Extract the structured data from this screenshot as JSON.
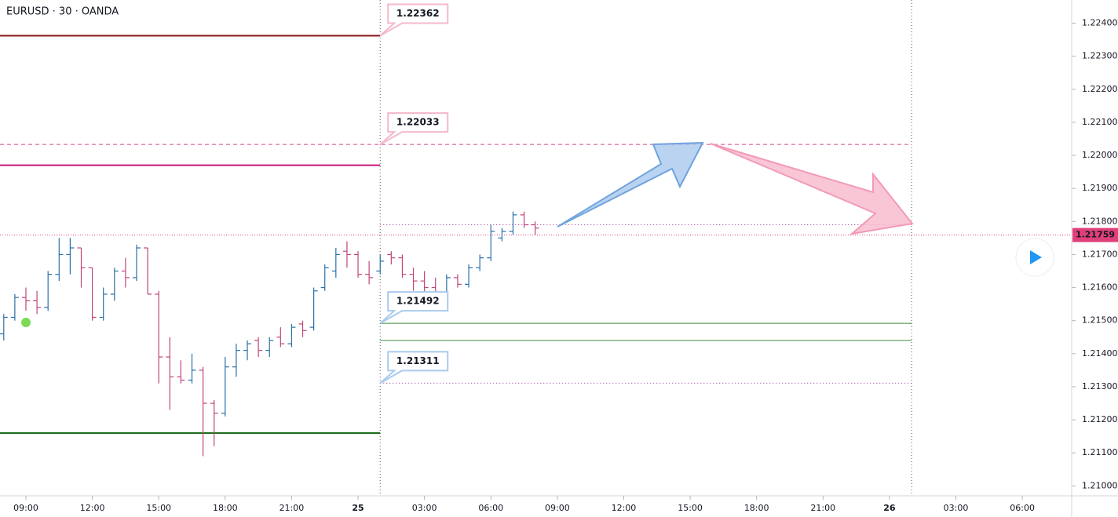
{
  "chart_data": {
    "type": "ohlc",
    "title": "EURUSD · 30 · OANDA",
    "x": [
      8,
      8.5,
      9,
      9.5,
      10,
      10.5,
      11,
      11.5,
      12,
      12.5,
      13,
      13.5,
      14,
      14.5,
      15,
      15.5,
      16,
      16.5,
      17,
      17.5,
      18,
      18.5,
      19,
      19.5,
      20,
      20.5,
      21,
      21.5,
      22,
      22.5,
      23,
      23.5,
      24,
      24.5,
      25,
      25.5,
      26,
      26.5,
      27,
      27.5,
      28,
      28.5,
      29,
      29.5,
      30,
      30.5,
      31,
      31.5,
      32
    ],
    "open": [
      1.2146,
      1.2151,
      1.2157,
      1.2156,
      1.2154,
      1.2164,
      1.217,
      1.2172,
      1.2166,
      1.2151,
      1.2158,
      1.2165,
      1.2163,
      1.2172,
      1.2158,
      1.2139,
      1.2133,
      1.2132,
      1.2135,
      1.2125,
      1.2122,
      1.2136,
      1.2141,
      1.2144,
      1.2141,
      1.2145,
      1.2143,
      1.2149,
      1.2148,
      1.216,
      1.2165,
      1.2171,
      1.217,
      1.2164,
      1.2165,
      1.217,
      1.2169,
      1.2164,
      1.2162,
      1.216,
      1.2158,
      1.2163,
      1.2161,
      1.2166,
      1.2169,
      1.2175,
      1.2177,
      1.2182,
      1.2179
    ],
    "high": [
      1.2152,
      1.2158,
      1.216,
      1.2159,
      1.2165,
      1.2175,
      1.2175,
      1.2172,
      1.2166,
      1.216,
      1.2166,
      1.2169,
      1.2173,
      1.2172,
      1.2159,
      1.2145,
      1.2138,
      1.214,
      1.2136,
      1.2126,
      1.2139,
      1.2143,
      1.2144,
      1.2145,
      1.2145,
      1.2148,
      1.2149,
      1.215,
      1.216,
      1.2167,
      1.2172,
      1.2174,
      1.2171,
      1.2168,
      1.217,
      1.2171,
      1.217,
      1.2166,
      1.2165,
      1.2163,
      1.2164,
      1.2164,
      1.2167,
      1.217,
      1.2179,
      1.2178,
      1.2183,
      1.2183,
      1.218
    ],
    "low": [
      1.2144,
      1.215,
      1.2153,
      1.2152,
      1.2153,
      1.2162,
      1.2164,
      1.216,
      1.215,
      1.215,
      1.2156,
      1.216,
      1.2162,
      1.2158,
      1.2131,
      1.2123,
      1.2131,
      1.2131,
      1.2109,
      1.2112,
      1.2121,
      1.2133,
      1.2138,
      1.2139,
      1.2139,
      1.2142,
      1.2142,
      1.2145,
      1.2147,
      1.2159,
      1.2163,
      1.2166,
      1.2163,
      1.2161,
      1.2164,
      1.2167,
      1.2163,
      1.2159,
      1.2157,
      1.2156,
      1.2156,
      1.216,
      1.216,
      1.2165,
      1.2168,
      1.2174,
      1.2176,
      1.2178,
      1.2176
    ],
    "close": [
      1.2151,
      1.2157,
      1.2156,
      1.2154,
      1.2164,
      1.217,
      1.2172,
      1.2166,
      1.2151,
      1.2158,
      1.2165,
      1.2163,
      1.2172,
      1.2158,
      1.2139,
      1.2133,
      1.2132,
      1.2135,
      1.2125,
      1.2122,
      1.2136,
      1.2141,
      1.2143,
      1.2141,
      1.2144,
      1.2143,
      1.2148,
      1.2147,
      1.2159,
      1.2166,
      1.217,
      1.217,
      1.2164,
      1.2163,
      1.2168,
      1.2169,
      1.2164,
      1.2162,
      1.216,
      1.2157,
      1.2163,
      1.2161,
      1.2166,
      1.2169,
      1.2177,
      1.2177,
      1.2182,
      1.2179,
      1.2178
    ],
    "up_color": "#2a6fa8",
    "down_color": "#c2447a",
    "xlim": [
      7.83,
      56.23
    ],
    "xticks": [
      {
        "value": 9,
        "label": "09:00"
      },
      {
        "value": 12,
        "label": "12:00"
      },
      {
        "value": 15,
        "label": "15:00"
      },
      {
        "value": 18,
        "label": "18:00"
      },
      {
        "value": 21,
        "label": "21:00"
      },
      {
        "value": 24,
        "label": "25"
      },
      {
        "value": 27,
        "label": "03:00"
      },
      {
        "value": 30,
        "label": "06:00"
      },
      {
        "value": 33,
        "label": "09:00"
      },
      {
        "value": 36,
        "label": "12:00"
      },
      {
        "value": 39,
        "label": "15:00"
      },
      {
        "value": 42,
        "label": "18:00"
      },
      {
        "value": 45,
        "label": "21:00"
      },
      {
        "value": 48,
        "label": "26"
      },
      {
        "value": 51,
        "label": "03:00"
      },
      {
        "value": 54,
        "label": "06:00"
      }
    ],
    "ylim": [
      1.2097,
      1.2247
    ],
    "yticks": [
      {
        "value": 1.21,
        "label": "1.21000"
      },
      {
        "value": 1.211,
        "label": "1.21100"
      },
      {
        "value": 1.212,
        "label": "1.21200"
      },
      {
        "value": 1.213,
        "label": "1.21300"
      },
      {
        "value": 1.214,
        "label": "1.21400"
      },
      {
        "value": 1.215,
        "label": "1.21500"
      },
      {
        "value": 1.216,
        "label": "1.21600"
      },
      {
        "value": 1.217,
        "label": "1.21700"
      },
      {
        "value": 1.218,
        "label": "1.21800"
      },
      {
        "value": 1.219,
        "label": "1.21900"
      },
      {
        "value": 1.22,
        "label": "1.22000"
      },
      {
        "value": 1.221,
        "label": "1.22100"
      },
      {
        "value": 1.222,
        "label": "1.22200"
      },
      {
        "value": 1.223,
        "label": "1.22300"
      },
      {
        "value": 1.224,
        "label": "1.22400"
      }
    ],
    "levels": [
      {
        "value": 1.22362,
        "color": "#8b1a1a",
        "style": "solid",
        "x_range": [
          7.83,
          25
        ],
        "callout": true
      },
      {
        "value": 1.22033,
        "color": "#d6448a",
        "style": "dashed",
        "x_range": [
          7.83,
          49
        ],
        "callout": true
      },
      {
        "value": 1.2197,
        "color": "#c2187a",
        "style": "solid",
        "x_range": [
          7.83,
          25
        ],
        "callout": false
      },
      {
        "value": 1.2116,
        "color": "#1b6b1b",
        "style": "solid",
        "x_range": [
          7.83,
          25
        ],
        "callout": false
      },
      {
        "value": 1.2179,
        "color": "#9c2a8a",
        "style": "dotted",
        "x_range": [
          25,
          49
        ],
        "callout": false
      },
      {
        "value": 1.21492,
        "color": "#3c8a3c",
        "style": "thin",
        "x_range": [
          25,
          49
        ],
        "callout": true
      },
      {
        "value": 1.2144,
        "color": "#3c8a3c",
        "style": "thin",
        "x_range": [
          25,
          49
        ],
        "callout": false
      },
      {
        "value": 1.21311,
        "color": "#9c2a8a",
        "style": "dotted",
        "x_range": [
          25,
          49
        ],
        "callout": true
      }
    ],
    "vlines": [
      25,
      49
    ],
    "last": {
      "value": 1.21759,
      "color": "#e0407a"
    }
  }
}
